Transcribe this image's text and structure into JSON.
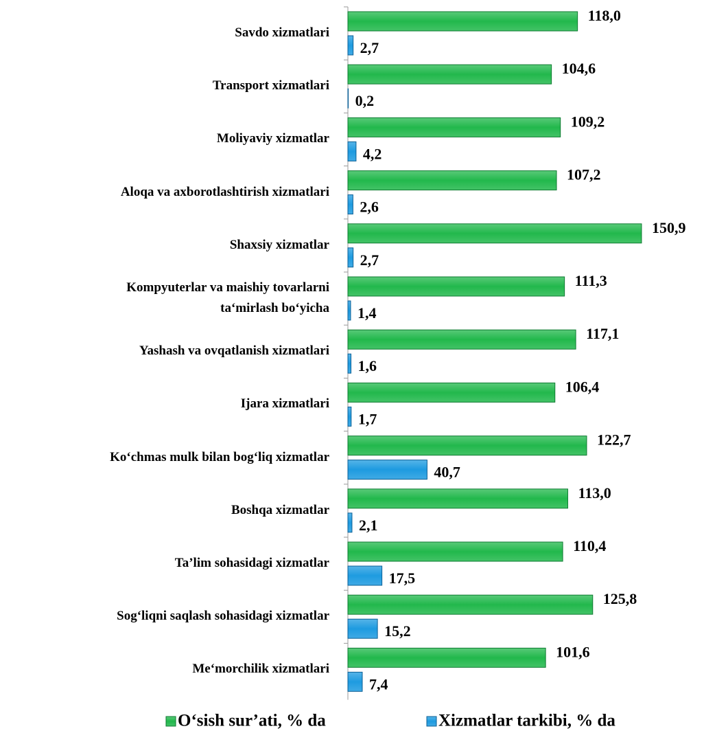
{
  "chart_data": {
    "type": "bar",
    "orientation": "horizontal",
    "categories": [
      "Savdo xizmatlari",
      "Transport xizmatlari",
      "Moliyaviy xizmatlar",
      "Aloqa va axborotlashtirish xizmatlari",
      "Shaxsiy xizmatlar",
      "Kompyuterlar va maishiy tovarlarni\nta‘mirlash bo‘yicha",
      "Yashash va ovqatlanish xizmatlari",
      "Ijara xizmatlari",
      "Ko‘chmas mulk bilan bog‘liq xizmatlar",
      "Boshqa xizmatlar",
      "Ta’lim sohasidagi xizmatlar",
      "Sog‘liqni saqlash sohasidagi xizmatlar",
      "Me‘morchilik  xizmatlari"
    ],
    "series": [
      {
        "name": "O‘sish sur’ati, % da",
        "color": "#22b84c",
        "values": [
          118.0,
          104.6,
          109.2,
          107.2,
          150.9,
          111.3,
          117.1,
          106.4,
          122.7,
          113.0,
          110.4,
          125.8,
          101.6
        ],
        "value_labels": [
          "118,0",
          "104,6",
          "109,2",
          "107,2",
          "150,9",
          "111,3",
          "117,1",
          "106,4",
          "122,7",
          "113,0",
          "110,4",
          "125,8",
          "101,6"
        ]
      },
      {
        "name": "Xizmatlar tarkibi, % da",
        "color": "#1e9be0",
        "values": [
          2.7,
          0.2,
          4.2,
          2.6,
          2.7,
          1.4,
          1.6,
          1.7,
          40.7,
          2.1,
          17.5,
          15.2,
          7.4
        ],
        "value_labels": [
          "2,7",
          "0,2",
          "4,2",
          "2,6",
          "2,7",
          "1,4",
          "1,6",
          "1,7",
          "40,7",
          "2,1",
          "17,5",
          "15,2",
          "7,4"
        ]
      }
    ],
    "legend": "bottom"
  }
}
